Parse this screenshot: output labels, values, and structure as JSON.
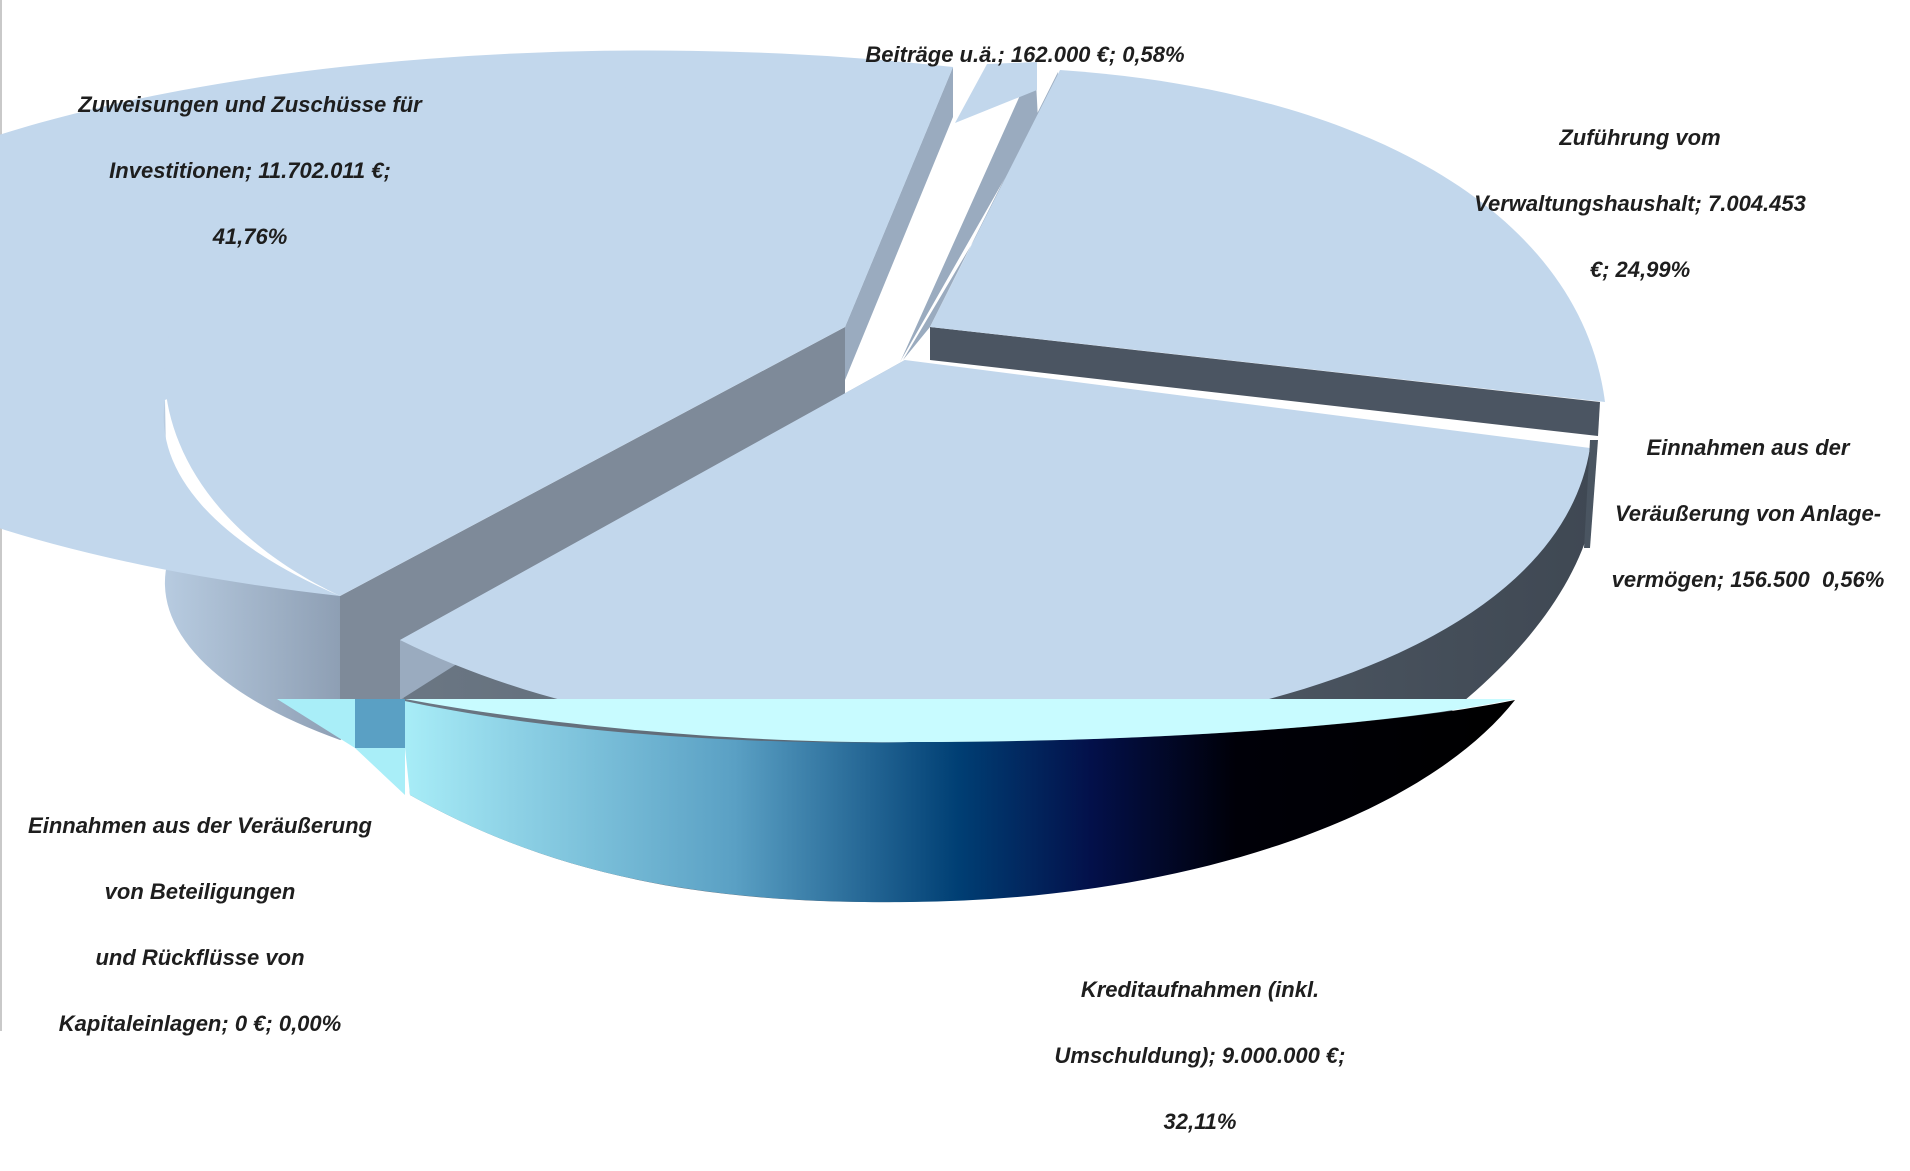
{
  "chart_data": {
    "type": "pie",
    "variant": "3d-exploded",
    "title": "",
    "slices": [
      {
        "label_lines": [
          "Zuweisungen und Zuschüsse für",
          "Investitionen; 11.702.011 €;",
          "41,76%"
        ],
        "name": "Zuweisungen und Zuschüsse für Investitionen",
        "value": 11702011,
        "percent": 41.76,
        "exploded": true
      },
      {
        "label_lines": [
          "Beiträge u.ä.; 162.000 €; 0,58%"
        ],
        "name": "Beiträge u.ä.",
        "value": 162000,
        "percent": 0.58,
        "exploded": true
      },
      {
        "label_lines": [
          "Zuführung vom",
          "Verwaltungshaushalt; 7.004.453",
          "€; 24,99%"
        ],
        "name": "Zuführung vom Verwaltungshaushalt",
        "value": 7004453,
        "percent": 24.99,
        "exploded": true
      },
      {
        "label_lines": [
          "Einnahmen aus der",
          "Veräußerung von Anlage-",
          "vermögen; 156.500  0,56%"
        ],
        "name": "Einnahmen aus der Veräußerung von Anlagevermögen",
        "value": 156500,
        "percent": 0.56,
        "exploded": false
      },
      {
        "label_lines": [
          "Kreditaufnahmen (inkl.",
          "Umschuldung); 9.000.000 €;",
          "32,11%"
        ],
        "name": "Kreditaufnahmen (inkl. Umschuldung)",
        "value": 9000000,
        "percent": 32.11,
        "exploded": false
      },
      {
        "label_lines": [
          "Einnahmen aus der Veräußerung",
          "von Beteiligungen",
          "und Rückflüsse von",
          "Kapitaleinlagen; 0 €; 0,00%"
        ],
        "name": "Einnahmen aus der Veräußerung von Beteiligungen und Rückflüsse von Kapitaleinlagen",
        "value": 0,
        "percent": 0.0,
        "exploded": false
      }
    ],
    "legend": "none",
    "colors": {
      "top_face": "#c2d7ec",
      "cut_face_light": "#9aabbf",
      "cut_face_mid": "#7e8a99",
      "cut_face_dark": "#4b5562",
      "side_light": "#a9bdd3",
      "side_dark": "#4a5561",
      "band_cyan": "#a8f0f8",
      "band_navy": "#003a6e",
      "band_black": "#000008"
    }
  }
}
